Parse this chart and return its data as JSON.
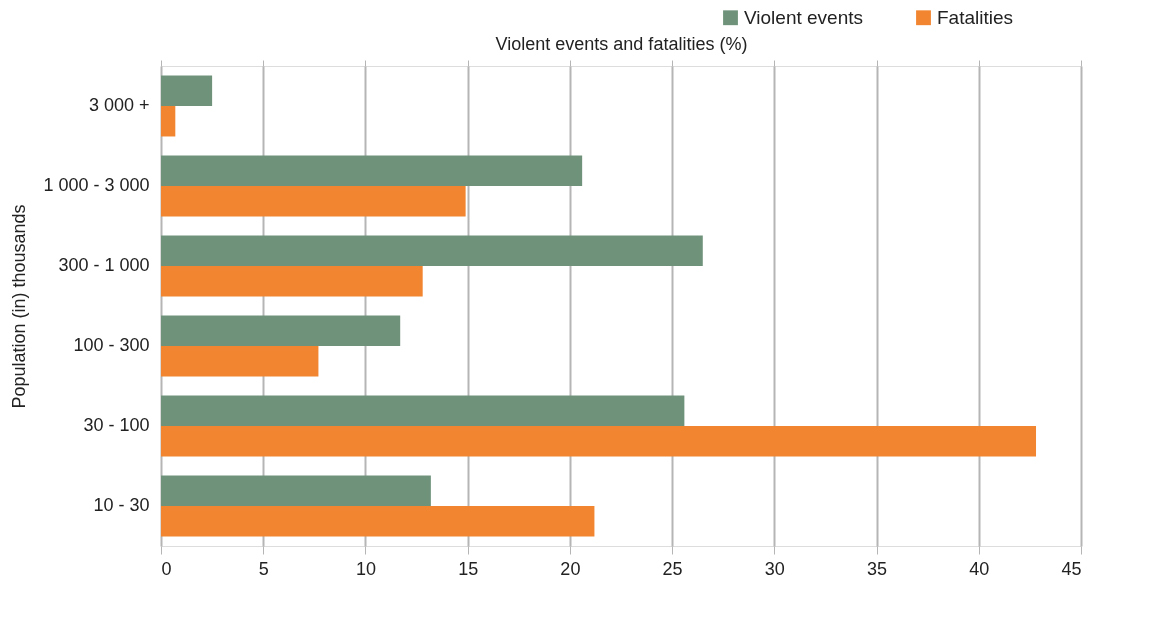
{
  "chart_data": {
    "type": "bar",
    "orientation": "horizontal",
    "xlabel": "Violent events and fatalities (%)",
    "ylabel": "Population (in) thousands",
    "categories": [
      "3 000 +",
      "1 000 - 3 000",
      "300 - 1 000",
      "100 - 300",
      "30 - 100",
      "10 - 30"
    ],
    "series": [
      {
        "name": "Violent events",
        "color": "#6f937a",
        "values": [
          2.5,
          20.6,
          26.5,
          11.7,
          25.6,
          13.2
        ]
      },
      {
        "name": "Fatalities",
        "color": "#f28530",
        "values": [
          0.7,
          14.9,
          12.8,
          7.7,
          42.8,
          21.2
        ]
      }
    ],
    "xlim": [
      0,
      45
    ],
    "xticks": [
      0,
      5,
      10,
      15,
      20,
      25,
      30,
      35,
      40,
      45
    ],
    "grid": "x",
    "legend": "top right"
  }
}
